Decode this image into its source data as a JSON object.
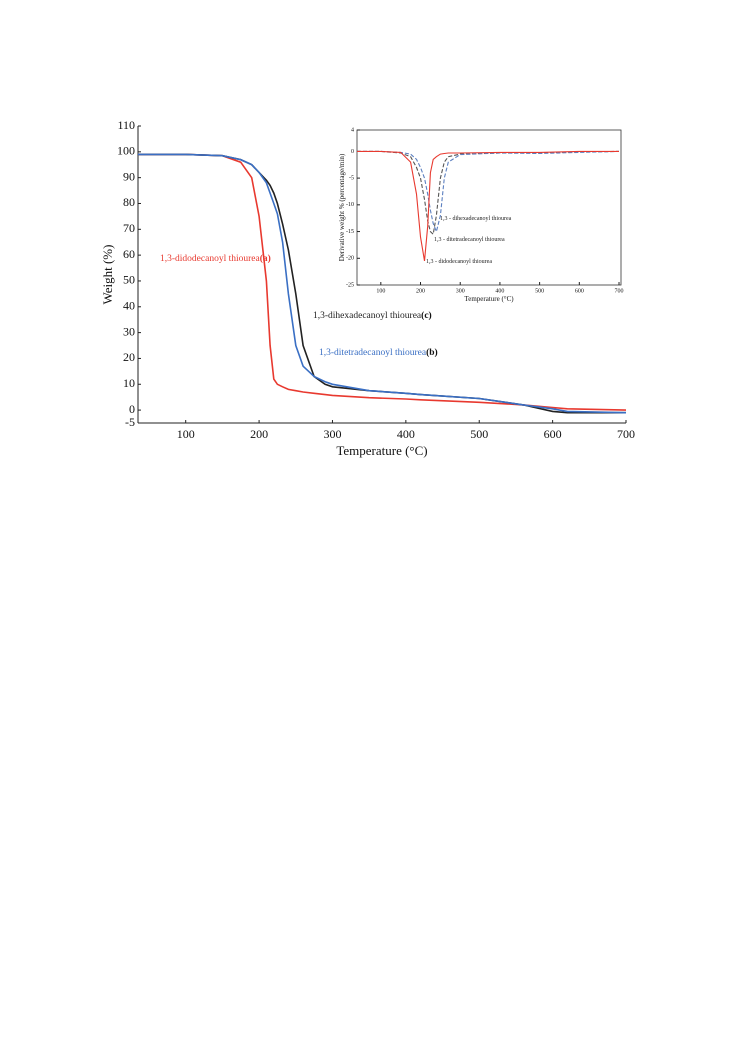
{
  "chart_data": [
    {
      "type": "line",
      "x_label": "Temperature (°C)",
      "y_label": "Weight (%)",
      "xlim": [
        35,
        700
      ],
      "xticks": [
        100,
        200,
        300,
        400,
        500,
        600,
        700
      ],
      "ylim": [
        -5,
        110
      ],
      "yticks": [
        110,
        100,
        90,
        80,
        70,
        60,
        50,
        40,
        30,
        20,
        10,
        0,
        -5
      ],
      "x": [
        35,
        100,
        150,
        175,
        190,
        200,
        210,
        215,
        220,
        225,
        232,
        240,
        250,
        260,
        275,
        290,
        300,
        350,
        400,
        420,
        500,
        560,
        600,
        620,
        700
      ],
      "series": [
        {
          "name": "1,3-didodecanoyl thiourea",
          "tag": "(a)",
          "color": "#e8392f",
          "values": [
            99,
            99,
            98.5,
            96,
            90,
            75,
            50,
            25,
            12,
            10,
            9,
            8,
            7.5,
            7,
            6.5,
            6,
            5.7,
            4.8,
            4.3,
            4,
            3,
            2,
            1,
            0.5,
            0
          ]
        },
        {
          "name": "1,3-dihexadecanoyl thiourea",
          "tag": "(c)",
          "color": "#222222",
          "values": [
            99,
            99,
            98.5,
            97,
            95,
            92,
            89,
            87,
            84,
            80,
            72,
            62,
            45,
            25,
            13,
            10,
            9,
            7.5,
            6.5,
            6,
            4.5,
            2,
            -0.5,
            -1,
            -1
          ]
        },
        {
          "name": "1,3-ditetradecanoyl thiourea",
          "tag": "(b)",
          "color": "#3a6fc4",
          "values": [
            99,
            99,
            98.5,
            97,
            95,
            92,
            88,
            84,
            80,
            76,
            65,
            45,
            25,
            17,
            13,
            11,
            10,
            7.5,
            6.5,
            6,
            4.5,
            2,
            0.5,
            -0.5,
            -1
          ]
        }
      ]
    },
    {
      "type": "line",
      "x_label": "Temperature (°C)",
      "y_label": "Derivative weight % (percentage/min)",
      "xlim": [
        40,
        705
      ],
      "xticks": [
        100,
        200,
        300,
        400,
        500,
        600,
        700
      ],
      "ylim": [
        -25,
        4
      ],
      "yticks": [
        4,
        0,
        -5,
        -10,
        -15,
        -20,
        -25
      ],
      "x": [
        40,
        100,
        150,
        175,
        190,
        200,
        210,
        218,
        225,
        232,
        240,
        250,
        260,
        270,
        300,
        400,
        500,
        600,
        700
      ],
      "series": [
        {
          "name": "1,3 - dihexadecanoyl thiourea",
          "color": "#555555",
          "dashed": true,
          "values": [
            0,
            0,
            -0.3,
            -1,
            -3,
            -5,
            -9,
            -13,
            -15,
            -15.5,
            -12,
            -5,
            -2,
            -1,
            -0.5,
            -0.3,
            -0.3,
            -0.1,
            0
          ]
        },
        {
          "name": "1,3 - ditetradecanoyl thiourea",
          "color": "#5b7fc0",
          "dashed": true,
          "values": [
            0,
            0,
            -0.2,
            -0.5,
            -1.5,
            -3,
            -5,
            -8,
            -11,
            -13.5,
            -15,
            -12,
            -5,
            -2,
            -0.6,
            -0.3,
            -0.4,
            -0.2,
            0
          ]
        },
        {
          "name": "1,3 - didodecanoyl thiourea",
          "color": "#e8392f",
          "values": [
            0,
            0,
            -0.2,
            -2,
            -8,
            -16,
            -20.5,
            -14,
            -4,
            -1.5,
            -1,
            -0.5,
            -0.4,
            -0.3,
            -0.3,
            -0.2,
            -0.2,
            0,
            0
          ]
        }
      ]
    }
  ]
}
